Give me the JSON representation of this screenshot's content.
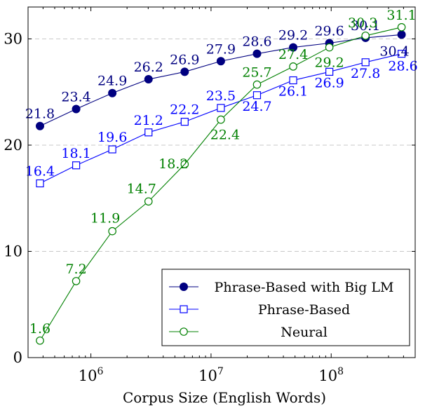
{
  "chart_data": {
    "type": "line",
    "xscale": "log",
    "xlabel": "Corpus Size (English Words)",
    "ylabel": "",
    "xlim": [
      300000,
      500000000
    ],
    "ylim": [
      0,
      33
    ],
    "xticks": [
      {
        "value": 1000000,
        "base": "10",
        "exp": "6"
      },
      {
        "value": 10000000,
        "base": "10",
        "exp": "7"
      },
      {
        "value": 100000000,
        "base": "10",
        "exp": "8"
      }
    ],
    "yticks": [
      0,
      10,
      20,
      30
    ],
    "grid": "horizontal-dashed",
    "legend_position": "bottom-right",
    "x": [
      377000,
      754000,
      1508000,
      3017000,
      6034000,
      12068000,
      24136000,
      48272000,
      96544000,
      193088000,
      385176000
    ],
    "series": [
      {
        "name": "Phrase-Based with Big LM",
        "color": "#000080",
        "marker": "filled-circle",
        "values": [
          21.8,
          23.4,
          24.9,
          26.2,
          26.9,
          27.9,
          28.6,
          29.2,
          29.6,
          30.1,
          30.4
        ],
        "labels": [
          "21.8",
          "23.4",
          "24.9",
          "26.2",
          "26.9",
          "27.9",
          "28.6",
          "29.2",
          "29.6",
          "30.1",
          "30.4"
        ]
      },
      {
        "name": "Phrase-Based",
        "color": "#0000ff",
        "marker": "open-square",
        "values": [
          16.4,
          18.1,
          19.6,
          21.2,
          22.2,
          23.5,
          24.7,
          26.1,
          26.9,
          27.8,
          28.6
        ],
        "labels": [
          "16.4",
          "18.1",
          "19.6",
          "21.2",
          "22.2",
          "23.5",
          "24.7",
          "26.1",
          "26.9",
          "27.8",
          "28.6"
        ]
      },
      {
        "name": "Neural",
        "color": "#008000",
        "marker": "open-circle",
        "values": [
          1.6,
          7.2,
          11.9,
          14.7,
          18.2,
          22.4,
          25.7,
          27.4,
          29.2,
          30.3,
          31.1
        ],
        "labels": [
          "1.6",
          "7.2",
          "11.9",
          "14.7",
          "18.2",
          "22.4",
          "25.7",
          "27.4",
          "29.2",
          "30.3",
          "31.1"
        ]
      }
    ]
  }
}
